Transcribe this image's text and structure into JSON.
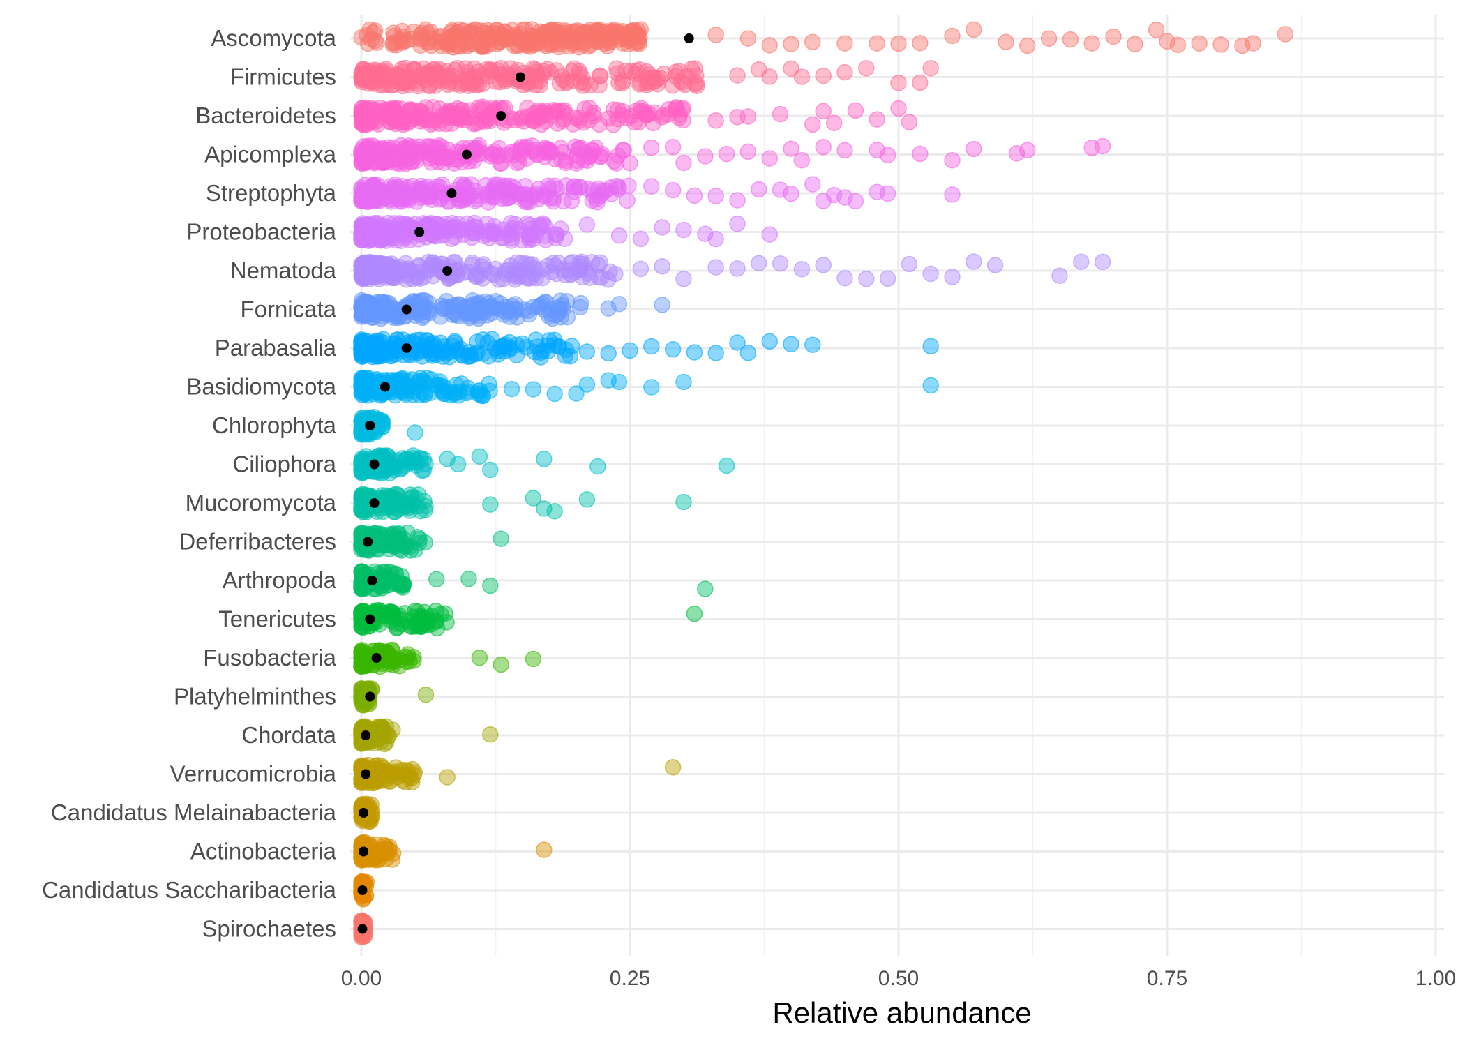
{
  "chart_data": {
    "type": "scatter",
    "title": "",
    "xlabel": "Relative abundance",
    "ylabel": "",
    "xlim": [
      0,
      1
    ],
    "x_ticks": [
      0,
      0.25,
      0.5,
      0.75,
      1.0
    ],
    "x_tick_labels": [
      "0.00",
      "0.25",
      "0.50",
      "0.75",
      "1.00"
    ],
    "grid": true,
    "legend": "none",
    "point_alpha": 0.45,
    "mean_point_color": "#000000",
    "categories": [
      {
        "name": "Ascomycota",
        "color": "#F8766D",
        "mean": 0.305,
        "n": 260,
        "core_max": 0.26,
        "core_pow": 0.9,
        "outliers": [
          0.33,
          0.36,
          0.38,
          0.4,
          0.42,
          0.45,
          0.48,
          0.5,
          0.52,
          0.55,
          0.57,
          0.6,
          0.62,
          0.64,
          0.66,
          0.68,
          0.7,
          0.72,
          0.74,
          0.75,
          0.76,
          0.78,
          0.8,
          0.82,
          0.83,
          0.86
        ]
      },
      {
        "name": "Firmicutes",
        "color": "#FF6C91",
        "mean": 0.148,
        "n": 230,
        "core_max": 0.32,
        "core_pow": 1.6,
        "outliers": [
          0.35,
          0.37,
          0.38,
          0.4,
          0.41,
          0.43,
          0.45,
          0.47,
          0.5,
          0.52,
          0.53
        ]
      },
      {
        "name": "Bacteroidetes",
        "color": "#FF61C3",
        "mean": 0.13,
        "n": 230,
        "core_max": 0.3,
        "core_pow": 1.6,
        "outliers": [
          0.33,
          0.35,
          0.36,
          0.39,
          0.42,
          0.43,
          0.44,
          0.46,
          0.48,
          0.5,
          0.51
        ]
      },
      {
        "name": "Apicomplexa",
        "color": "#F763E0",
        "mean": 0.098,
        "n": 220,
        "core_max": 0.25,
        "core_pow": 1.8,
        "outliers": [
          0.27,
          0.29,
          0.3,
          0.32,
          0.34,
          0.36,
          0.38,
          0.4,
          0.41,
          0.43,
          0.45,
          0.48,
          0.49,
          0.52,
          0.55,
          0.57,
          0.61,
          0.62,
          0.68,
          0.69
        ]
      },
      {
        "name": "Streptophyta",
        "color": "#E76BF3",
        "mean": 0.084,
        "n": 220,
        "core_max": 0.25,
        "core_pow": 1.9,
        "outliers": [
          0.27,
          0.29,
          0.31,
          0.33,
          0.35,
          0.37,
          0.39,
          0.4,
          0.42,
          0.43,
          0.44,
          0.45,
          0.46,
          0.48,
          0.49,
          0.55
        ]
      },
      {
        "name": "Proteobacteria",
        "color": "#D177FF",
        "mean": 0.054,
        "n": 220,
        "core_max": 0.19,
        "core_pow": 2.0,
        "outliers": [
          0.21,
          0.24,
          0.26,
          0.28,
          0.3,
          0.32,
          0.33,
          0.35,
          0.38
        ]
      },
      {
        "name": "Nematoda",
        "color": "#AF89FF",
        "mean": 0.08,
        "n": 220,
        "core_max": 0.24,
        "core_pow": 1.9,
        "outliers": [
          0.26,
          0.28,
          0.3,
          0.33,
          0.35,
          0.37,
          0.39,
          0.41,
          0.43,
          0.45,
          0.47,
          0.49,
          0.51,
          0.53,
          0.55,
          0.57,
          0.59,
          0.65,
          0.67,
          0.69
        ]
      },
      {
        "name": "Fornicata",
        "color": "#6496FF",
        "mean": 0.042,
        "n": 200,
        "core_max": 0.21,
        "core_pow": 2.2,
        "outliers": [
          0.23,
          0.24,
          0.28
        ]
      },
      {
        "name": "Parabasalia",
        "color": "#00A6FF",
        "mean": 0.042,
        "n": 180,
        "core_max": 0.2,
        "core_pow": 2.4,
        "outliers": [
          0.21,
          0.23,
          0.25,
          0.27,
          0.29,
          0.31,
          0.33,
          0.35,
          0.36,
          0.38,
          0.4,
          0.42,
          0.53
        ]
      },
      {
        "name": "Basidiomycota",
        "color": "#00B0F6",
        "mean": 0.022,
        "n": 150,
        "core_max": 0.12,
        "core_pow": 2.4,
        "outliers": [
          0.14,
          0.16,
          0.18,
          0.2,
          0.21,
          0.23,
          0.24,
          0.27,
          0.3,
          0.53
        ]
      },
      {
        "name": "Chlorophyta",
        "color": "#00BAE0",
        "mean": 0.008,
        "n": 80,
        "core_max": 0.02,
        "core_pow": 2.0,
        "outliers": [
          0.05
        ]
      },
      {
        "name": "Ciliophora",
        "color": "#00BFC4",
        "mean": 0.012,
        "n": 120,
        "core_max": 0.06,
        "core_pow": 2.4,
        "outliers": [
          0.08,
          0.09,
          0.11,
          0.12,
          0.17,
          0.22,
          0.34
        ]
      },
      {
        "name": "Mucoromycota",
        "color": "#00C1A7",
        "mean": 0.012,
        "n": 110,
        "core_max": 0.06,
        "core_pow": 2.4,
        "outliers": [
          0.12,
          0.16,
          0.17,
          0.18,
          0.21,
          0.3
        ]
      },
      {
        "name": "Deferribacteres",
        "color": "#00BF7D",
        "mean": 0.006,
        "n": 110,
        "core_max": 0.06,
        "core_pow": 2.6,
        "outliers": [
          0.13
        ]
      },
      {
        "name": "Arthropoda",
        "color": "#00BE67",
        "mean": 0.01,
        "n": 90,
        "core_max": 0.04,
        "core_pow": 2.4,
        "outliers": [
          0.07,
          0.1,
          0.12,
          0.32
        ]
      },
      {
        "name": "Tenericutes",
        "color": "#00BC3D",
        "mean": 0.008,
        "n": 110,
        "core_max": 0.08,
        "core_pow": 2.5,
        "outliers": [
          0.31
        ]
      },
      {
        "name": "Fusobacteria",
        "color": "#39B600",
        "mean": 0.014,
        "n": 80,
        "core_max": 0.05,
        "core_pow": 2.4,
        "outliers": [
          0.11,
          0.13,
          0.16
        ]
      },
      {
        "name": "Platyhelminthes",
        "color": "#7CAE00",
        "mean": 0.008,
        "n": 50,
        "core_max": 0.01,
        "core_pow": 2.0,
        "outliers": [
          0.06
        ]
      },
      {
        "name": "Chordata",
        "color": "#A3A500",
        "mean": 0.004,
        "n": 80,
        "core_max": 0.03,
        "core_pow": 2.6,
        "outliers": [
          0.12
        ]
      },
      {
        "name": "Verrucomicrobia",
        "color": "#BB9D00",
        "mean": 0.004,
        "n": 100,
        "core_max": 0.05,
        "core_pow": 2.6,
        "outliers": [
          0.08,
          0.29
        ]
      },
      {
        "name": "Candidatus Melainabacteria",
        "color": "#C49A00",
        "mean": 0.002,
        "n": 60,
        "core_max": 0.01,
        "core_pow": 2.0,
        "outliers": []
      },
      {
        "name": "Actinobacteria",
        "color": "#D89000",
        "mean": 0.002,
        "n": 80,
        "core_max": 0.03,
        "core_pow": 2.6,
        "outliers": [
          0.17
        ]
      },
      {
        "name": "Candidatus Saccharibacteria",
        "color": "#E58700",
        "mean": 0.001,
        "n": 40,
        "core_max": 0.005,
        "core_pow": 2.0,
        "outliers": []
      },
      {
        "name": "Spirochaetes",
        "color": "#F8766D",
        "mean": 0.001,
        "n": 40,
        "core_max": 0.004,
        "core_pow": 2.0,
        "outliers": []
      }
    ]
  }
}
